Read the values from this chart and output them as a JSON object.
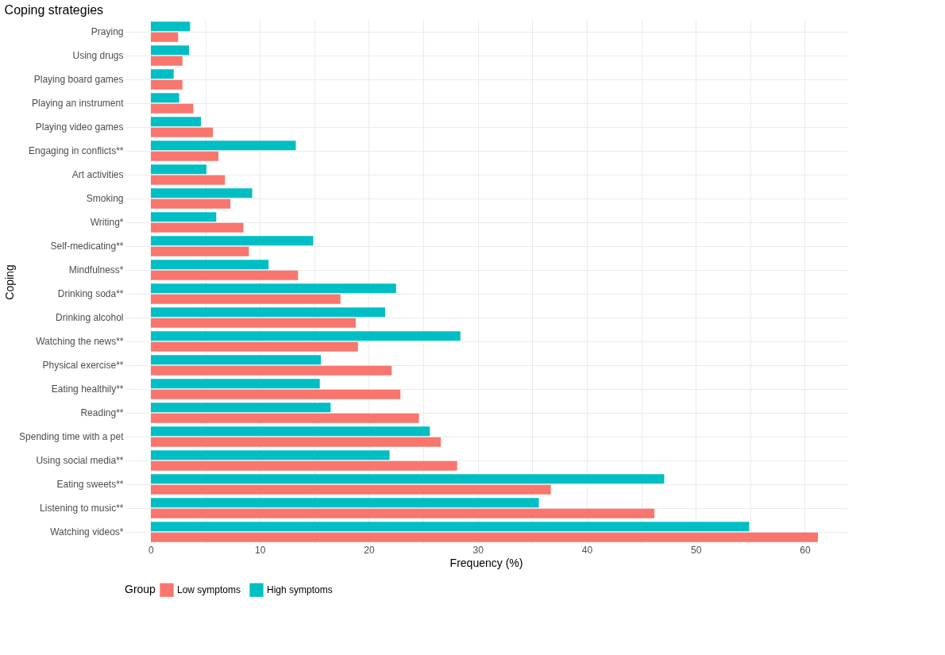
{
  "chart_data": {
    "type": "bar",
    "orientation": "horizontal",
    "title": "Coping strategies",
    "xlabel": "Frequency (%)",
    "ylabel": "Coping",
    "legend_title": "Group",
    "legend": "bottom",
    "grid": true,
    "categories": [
      "Praying",
      "Using drugs",
      "Playing board games",
      "Playing an instrument",
      "Playing video games",
      "Engaging in conflicts**",
      "Art activities",
      "Smoking",
      "Writing*",
      "Self-medicating**",
      "Mindfulness*",
      "Drinking soda**",
      "Drinking alcohol",
      "Watching the news**",
      "Physical exercise**",
      "Eating healthily**",
      "Reading**",
      "Spending time with a pet",
      "Using social media**",
      "Eating sweets**",
      "Listening to music**",
      "Watching videos*"
    ],
    "series": [
      {
        "name": "Low symptoms",
        "color": "#f8766d",
        "values": [
          2.5,
          2.9,
          2.9,
          3.9,
          5.7,
          6.2,
          6.8,
          7.3,
          8.5,
          9.0,
          13.5,
          17.4,
          18.8,
          19.0,
          22.1,
          22.9,
          24.6,
          26.6,
          28.1,
          36.7,
          46.2,
          61.2
        ]
      },
      {
        "name": "High symptoms",
        "color": "#00bfc4",
        "values": [
          3.6,
          3.5,
          2.1,
          2.6,
          4.6,
          13.3,
          5.1,
          9.3,
          6.0,
          14.9,
          10.8,
          22.5,
          21.5,
          28.4,
          15.6,
          15.5,
          16.5,
          25.6,
          21.9,
          47.1,
          35.6,
          54.9
        ]
      }
    ],
    "xlim": [
      -2.4,
      63.9
    ],
    "xticks": [
      0,
      {
        "value": 5,
        "label": null
      },
      10,
      {
        "value": 15,
        "label": null
      },
      20,
      {
        "value": 25,
        "label": null
      },
      30,
      {
        "value": 35,
        "label": null
      },
      40,
      {
        "value": 45,
        "label": null
      },
      50,
      {
        "value": 55,
        "label": null
      },
      60
    ]
  }
}
